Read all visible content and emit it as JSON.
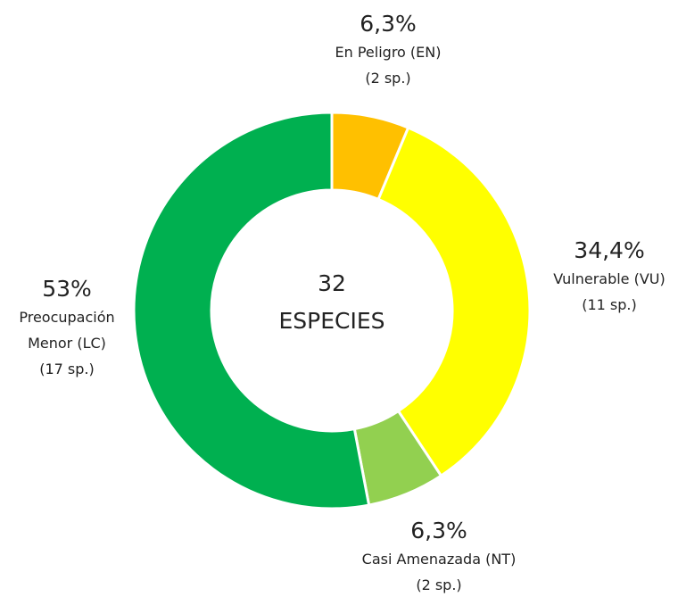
{
  "chart_data": {
    "type": "donut",
    "categories": [
      "En Peligro (EN)",
      "Vulnerable (VU)",
      "Casi Amenazada (NT)",
      "Preocupación Menor (LC)"
    ],
    "values": [
      6.3,
      34.4,
      6.3,
      53
    ],
    "value_labels": [
      "6,3%",
      "34,4%",
      "6,3%",
      "53%"
    ],
    "counts": [
      2,
      11,
      2,
      17
    ],
    "count_labels": [
      "(2 sp.)",
      "(11 sp.)",
      "(2 sp.)",
      "(17 sp.)"
    ],
    "colors": [
      "#ffc000",
      "#ffff00",
      "#92d050",
      "#00b050"
    ],
    "center_value": 32,
    "center_text": "ESPECIES"
  }
}
